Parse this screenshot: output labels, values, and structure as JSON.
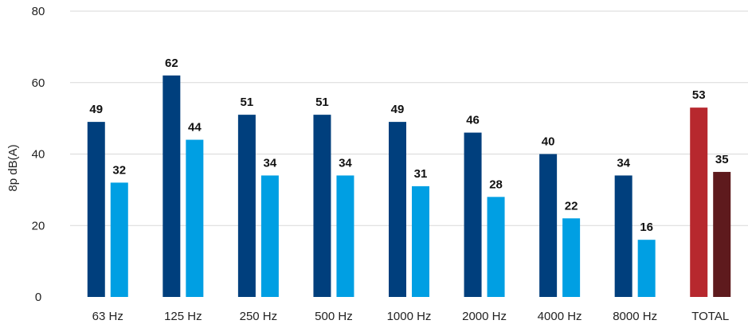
{
  "chart_data": {
    "type": "bar",
    "title": "",
    "xlabel": "",
    "ylabel": "8p dB(A)",
    "ylim": [
      0,
      80
    ],
    "yticks": [
      "0",
      "20",
      "40",
      "60",
      "80"
    ],
    "grid": true,
    "categories": [
      "63 Hz",
      "125 Hz",
      "250 Hz",
      "500 Hz",
      "1000 Hz",
      "2000 Hz",
      "4000 Hz",
      "8000 Hz",
      "TOTAL"
    ],
    "series": [
      {
        "values": [
          49,
          62,
          51,
          51,
          49,
          46,
          40,
          34,
          53
        ]
      },
      {
        "values": [
          32,
          44,
          34,
          34,
          31,
          28,
          22,
          16,
          35
        ]
      }
    ],
    "colors": {
      "series1": "#003f7d",
      "series2": "#009fe3",
      "total_series1": "#b7282e",
      "total_series2": "#5e1a1d",
      "grid": "#d9d9d9"
    }
  }
}
